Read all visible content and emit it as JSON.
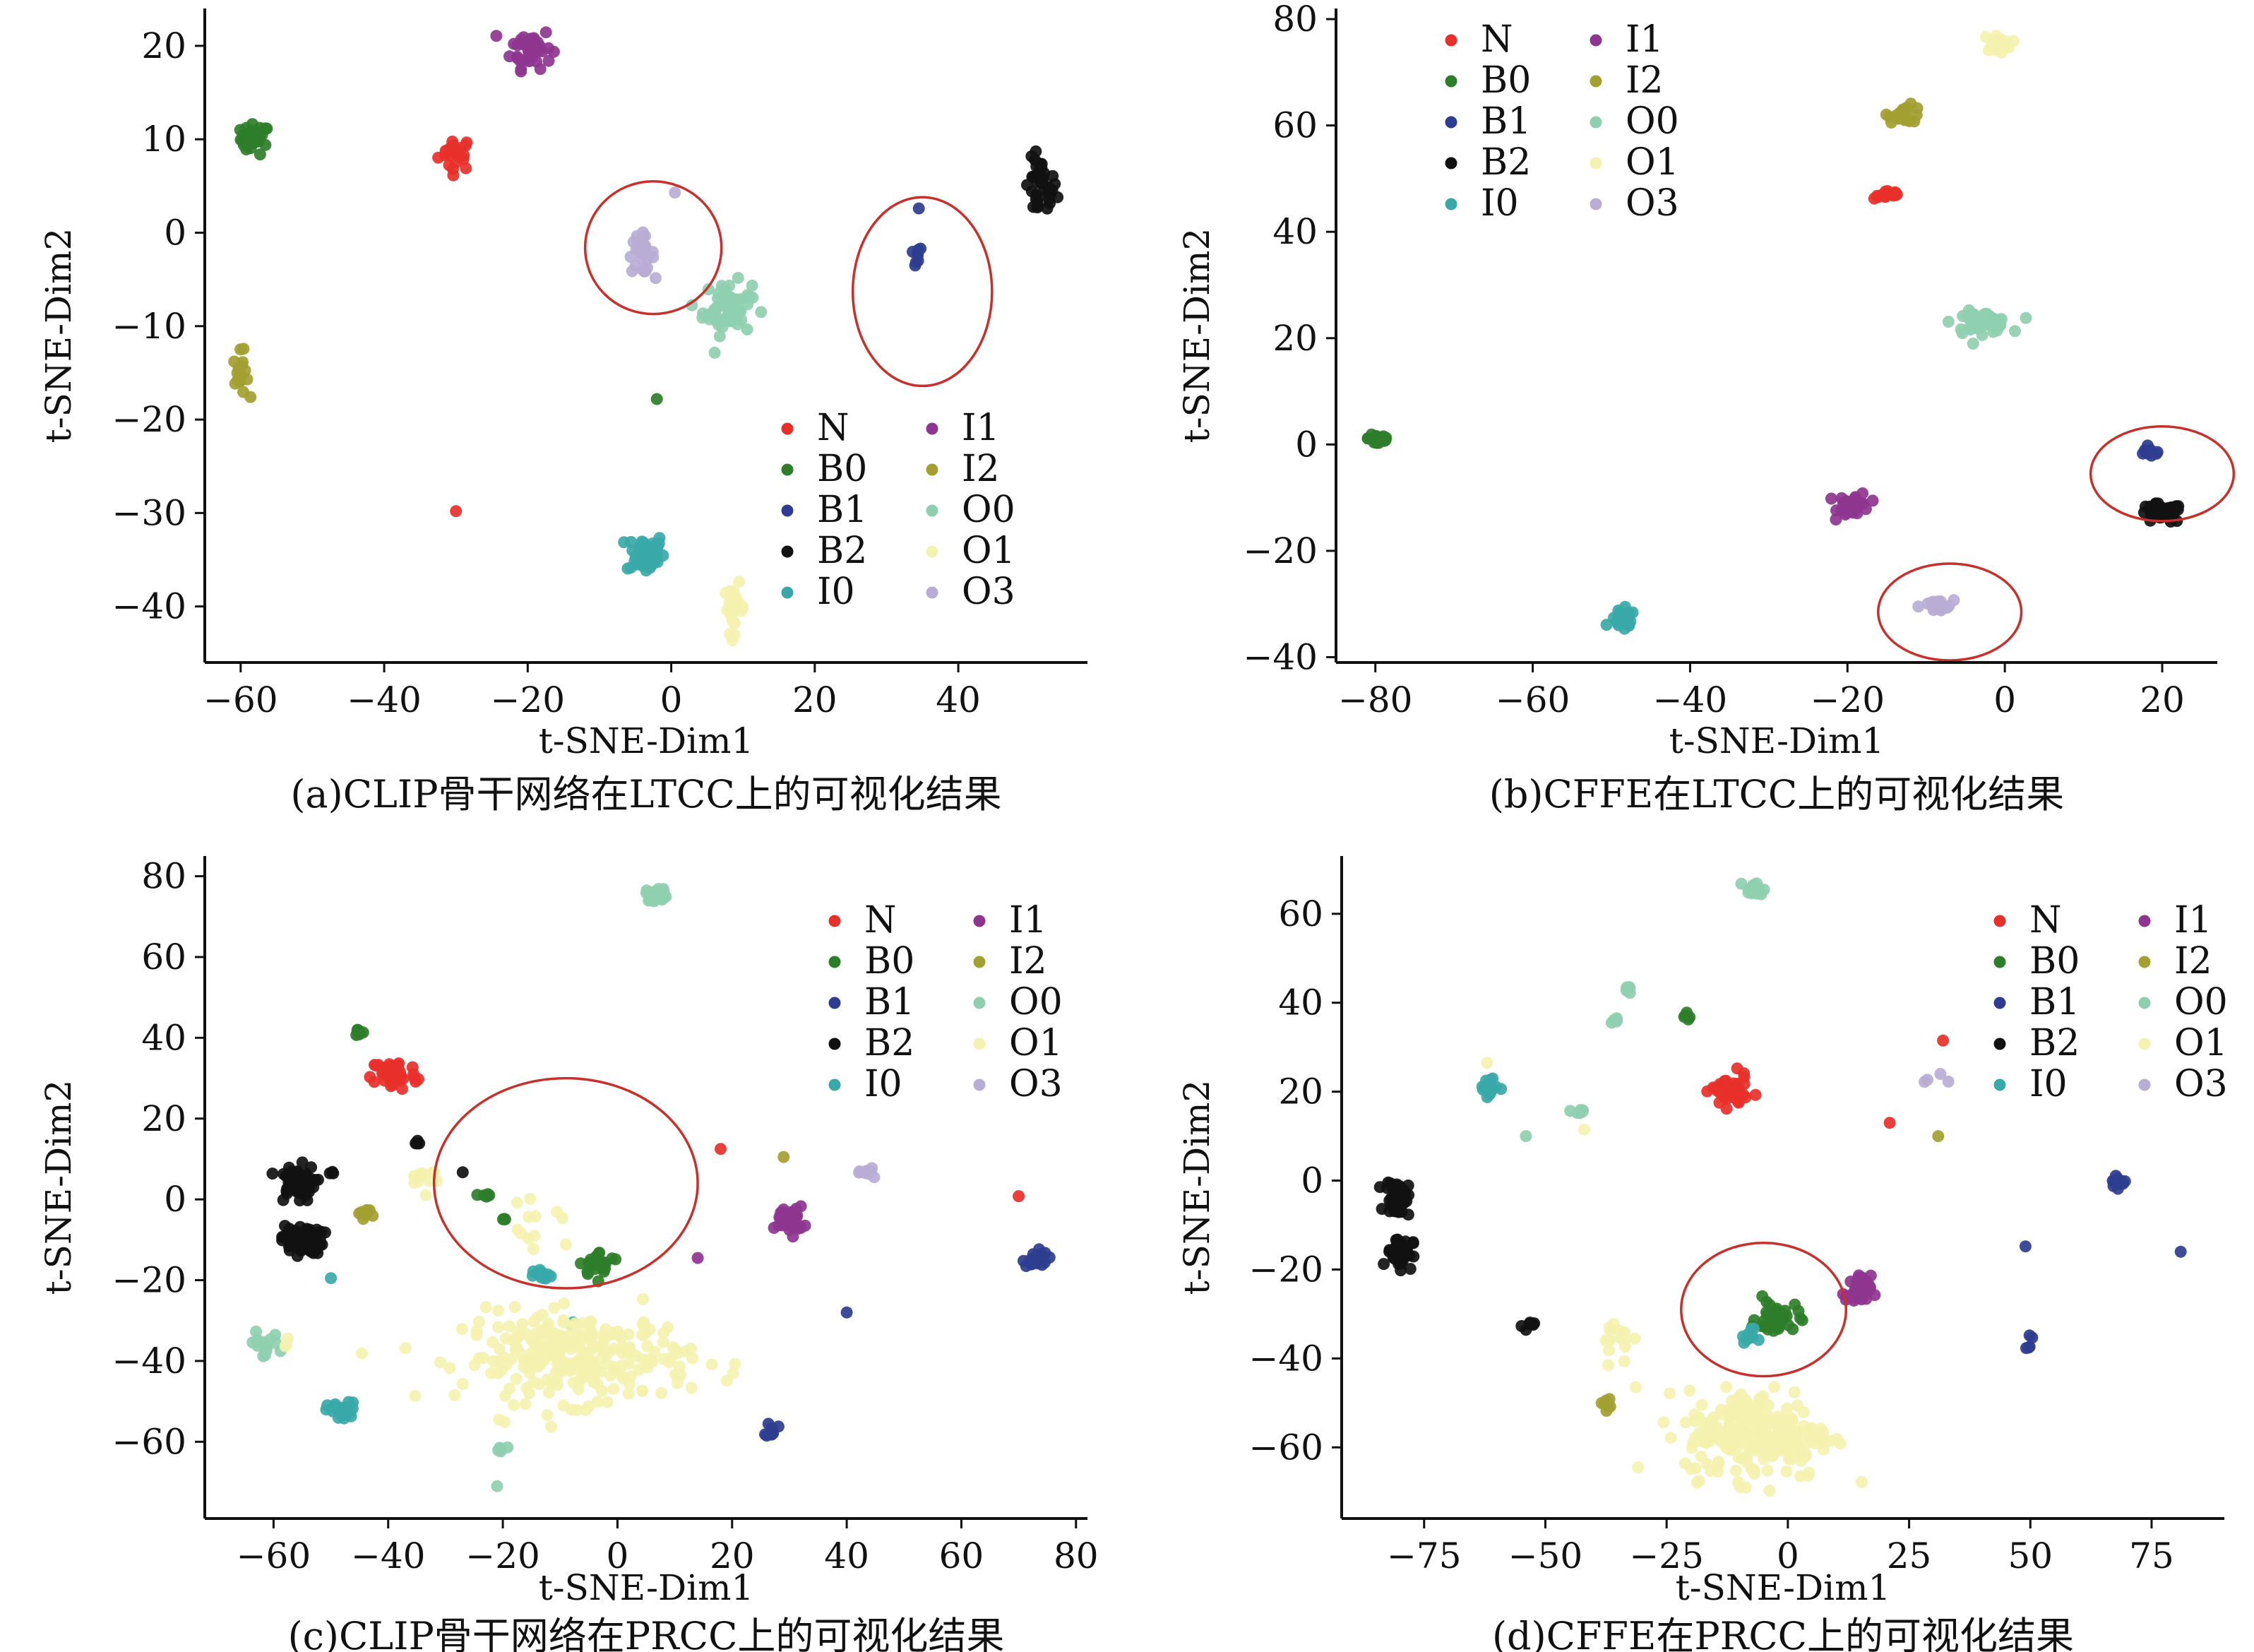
{
  "chart_data": [
    {
      "type": "scatter",
      "caption": "(a)CLIP骨干网络在LTCC上的可视化结果",
      "xlabel": "t-SNE-Dim1",
      "ylabel": "t-SNE-Dim2",
      "xlim": [
        -65,
        58
      ],
      "ylim": [
        -46,
        24
      ],
      "xticks": [
        -60,
        -40,
        -20,
        0,
        20,
        40
      ],
      "yticks": [
        20,
        10,
        0,
        -10,
        -20,
        -30,
        -40
      ],
      "legend_position": "bottom-right",
      "highlight_ellipses": [
        {
          "cx": -2.5,
          "cy": -1.6,
          "rx": 9.5,
          "ry": 7.1
        },
        {
          "cx": 35,
          "cy": -6.3,
          "rx": 9.7,
          "ry": 10.1
        }
      ],
      "series": [
        {
          "name": "N",
          "color": "#e8302a",
          "clusters": [
            {
              "x": -30,
              "y": 8.5,
              "sx": 1.2,
              "sy": 0.9,
              "n": 24
            },
            {
              "x": -30,
              "y": -29.8,
              "sx": 0.1,
              "sy": 0.1,
              "n": 1
            }
          ]
        },
        {
          "name": "B0",
          "color": "#2e7d2a",
          "clusters": [
            {
              "x": -58,
              "y": 10,
              "sx": 1.0,
              "sy": 0.8,
              "n": 30
            },
            {
              "x": -2,
              "y": -17.8,
              "sx": 0.1,
              "sy": 0.1,
              "n": 1
            }
          ]
        },
        {
          "name": "B1",
          "color": "#2e3d8f",
          "clusters": [
            {
              "x": 34,
              "y": -2.6,
              "sx": 0.5,
              "sy": 0.6,
              "n": 8
            },
            {
              "x": 34.5,
              "y": 2.6,
              "sx": 0.1,
              "sy": 0.1,
              "n": 1
            }
          ]
        },
        {
          "name": "B2",
          "color": "#111111",
          "clusters": [
            {
              "x": 51.5,
              "y": 4.7,
              "sx": 1.1,
              "sy": 1.6,
              "n": 40
            }
          ]
        },
        {
          "name": "I0",
          "color": "#3aa8a8",
          "clusters": [
            {
              "x": -3.6,
              "y": -34.3,
              "sx": 1.3,
              "sy": 1.1,
              "n": 45
            }
          ]
        },
        {
          "name": "I1",
          "color": "#8e3590",
          "clusters": [
            {
              "x": -19.5,
              "y": 19.8,
              "sx": 1.4,
              "sy": 1.1,
              "n": 45
            }
          ]
        },
        {
          "name": "I2",
          "color": "#a3a032",
          "clusters": [
            {
              "x": -60,
              "y": -15.2,
              "sx": 0.5,
              "sy": 1.2,
              "n": 18
            }
          ]
        },
        {
          "name": "O0",
          "color": "#8fcfb0",
          "clusters": [
            {
              "x": 7.8,
              "y": -8.1,
              "sx": 1.7,
              "sy": 1.4,
              "n": 60
            }
          ]
        },
        {
          "name": "O1",
          "color": "#f4f2b0",
          "clusters": [
            {
              "x": 8.8,
              "y": -40.2,
              "sx": 0.7,
              "sy": 1.3,
              "n": 25
            }
          ]
        },
        {
          "name": "O3",
          "color": "#b9acd5",
          "clusters": [
            {
              "x": -4.2,
              "y": -2.3,
              "sx": 0.9,
              "sy": 1.0,
              "n": 30
            },
            {
              "x": 0.5,
              "y": 4.3,
              "sx": 0.1,
              "sy": 0.1,
              "n": 1
            }
          ]
        }
      ]
    },
    {
      "type": "scatter",
      "caption": "(b)CFFE在LTCC上的可视化结果",
      "xlabel": "t-SNE-Dim1",
      "ylabel": "t-SNE-Dim2",
      "xlim": [
        -85,
        27
      ],
      "ylim": [
        -41,
        82
      ],
      "xticks": [
        -80,
        -60,
        -40,
        -20,
        0,
        20
      ],
      "yticks": [
        80,
        60,
        40,
        20,
        0,
        -20,
        -40
      ],
      "legend_position": "top-left",
      "highlight_ellipses": [
        {
          "cx": 20,
          "cy": -5.5,
          "rx": 9.1,
          "ry": 8.9
        },
        {
          "cx": -7,
          "cy": -31.5,
          "rx": 9.1,
          "ry": 9.1
        }
      ],
      "series": [
        {
          "name": "N",
          "color": "#e8302a",
          "clusters": [
            {
              "x": -14.8,
              "y": 47,
              "sx": 0.9,
              "sy": 0.4,
              "n": 20
            }
          ]
        },
        {
          "name": "B0",
          "color": "#2e7d2a",
          "clusters": [
            {
              "x": -79.5,
              "y": 1.2,
              "sx": 0.7,
              "sy": 0.8,
              "n": 20
            }
          ]
        },
        {
          "name": "B1",
          "color": "#2e3d8f",
          "clusters": [
            {
              "x": 18.5,
              "y": -1.5,
              "sx": 0.8,
              "sy": 0.4,
              "n": 12
            }
          ]
        },
        {
          "name": "B2",
          "color": "#111111",
          "clusters": [
            {
              "x": 19.8,
              "y": -13,
              "sx": 1.4,
              "sy": 0.9,
              "n": 40
            }
          ]
        },
        {
          "name": "I0",
          "color": "#3aa8a8",
          "clusters": [
            {
              "x": -48.5,
              "y": -33,
              "sx": 0.8,
              "sy": 1.0,
              "n": 25
            }
          ]
        },
        {
          "name": "I1",
          "color": "#8e3590",
          "clusters": [
            {
              "x": -19.2,
              "y": -11.3,
              "sx": 1.0,
              "sy": 1.1,
              "n": 35
            }
          ]
        },
        {
          "name": "I2",
          "color": "#a3a032",
          "clusters": [
            {
              "x": -12.6,
              "y": 62.2,
              "sx": 1.1,
              "sy": 0.8,
              "n": 22
            }
          ]
        },
        {
          "name": "O0",
          "color": "#8fcfb0",
          "clusters": [
            {
              "x": -3,
              "y": 23,
              "sx": 1.8,
              "sy": 1.0,
              "n": 50
            }
          ]
        },
        {
          "name": "O1",
          "color": "#f4f2b0",
          "clusters": [
            {
              "x": -1,
              "y": 75.5,
              "sx": 0.9,
              "sy": 0.8,
              "n": 22
            }
          ]
        },
        {
          "name": "O3",
          "color": "#b9acd5",
          "clusters": [
            {
              "x": -8.7,
              "y": -30.5,
              "sx": 1.1,
              "sy": 0.6,
              "n": 25
            }
          ]
        }
      ]
    },
    {
      "type": "scatter",
      "caption": "(c)CLIP骨干网络在PRCC上的可视化结果",
      "xlabel": "t-SNE-Dim1",
      "ylabel": "t-SNE-Dim2",
      "xlim": [
        -72,
        82
      ],
      "ylim": [
        -79,
        85
      ],
      "xticks": [
        -60,
        -40,
        -20,
        0,
        20,
        40,
        60,
        80
      ],
      "yticks": [
        80,
        60,
        40,
        20,
        0,
        -20,
        -40,
        -60
      ],
      "legend_position": "top-right",
      "highlight_ellipses": [
        {
          "cx": -9,
          "cy": 4,
          "rx": 23,
          "ry": 26
        }
      ],
      "series": [
        {
          "name": "N",
          "color": "#e8302a",
          "clusters": [
            {
              "x": -39,
              "y": 31,
              "sx": 2.0,
              "sy": 2.0,
              "n": 50
            },
            {
              "x": 18,
              "y": 12.5,
              "sx": 0.1,
              "sy": 0.1,
              "n": 1
            },
            {
              "x": 70,
              "y": 0.8,
              "sx": 0.1,
              "sy": 0.1,
              "n": 1
            }
          ]
        },
        {
          "name": "B0",
          "color": "#2e7d2a",
          "clusters": [
            {
              "x": -45,
              "y": 41.5,
              "sx": 0.4,
              "sy": 0.5,
              "n": 8
            },
            {
              "x": -3,
              "y": -16,
              "sx": 1.8,
              "sy": 1.5,
              "n": 25
            },
            {
              "x": -23,
              "y": 1,
              "sx": 0.5,
              "sy": 0.5,
              "n": 5
            },
            {
              "x": -20,
              "y": -5,
              "sx": 0.3,
              "sy": 0.3,
              "n": 3
            }
          ]
        },
        {
          "name": "B1",
          "color": "#2e3d8f",
          "clusters": [
            {
              "x": 73,
              "y": -14.5,
              "sx": 1.0,
              "sy": 1.2,
              "n": 20
            },
            {
              "x": 27,
              "y": -57,
              "sx": 0.5,
              "sy": 1.0,
              "n": 8
            },
            {
              "x": 40,
              "y": -28,
              "sx": 0.1,
              "sy": 0.1,
              "n": 1
            }
          ]
        },
        {
          "name": "B2",
          "color": "#111111",
          "clusters": [
            {
              "x": -56,
              "y": 4,
              "sx": 1.6,
              "sy": 2.2,
              "n": 60
            },
            {
              "x": -55,
              "y": -10,
              "sx": 1.8,
              "sy": 1.8,
              "n": 55
            },
            {
              "x": -50,
              "y": 6.5,
              "sx": 0.3,
              "sy": 0.3,
              "n": 3
            },
            {
              "x": -35,
              "y": 14,
              "sx": 0.5,
              "sy": 0.5,
              "n": 4
            },
            {
              "x": -27,
              "y": 6.7,
              "sx": 0.1,
              "sy": 0.1,
              "n": 1
            }
          ]
        },
        {
          "name": "I0",
          "color": "#3aa8a8",
          "clusters": [
            {
              "x": -48,
              "y": -52.5,
              "sx": 1.3,
              "sy": 1.1,
              "n": 30
            },
            {
              "x": -13,
              "y": -19,
              "sx": 0.8,
              "sy": 0.8,
              "n": 12
            },
            {
              "x": -50,
              "y": -19.5,
              "sx": 0.1,
              "sy": 0.1,
              "n": 1
            },
            {
              "x": -8,
              "y": -31,
              "sx": 0.3,
              "sy": 0.3,
              "n": 2
            }
          ]
        },
        {
          "name": "I1",
          "color": "#8e3590",
          "clusters": [
            {
              "x": 30,
              "y": -5,
              "sx": 1.2,
              "sy": 1.6,
              "n": 45
            },
            {
              "x": 14,
              "y": -14.5,
              "sx": 0.1,
              "sy": 0.1,
              "n": 1
            }
          ]
        },
        {
          "name": "I2",
          "color": "#a3a032",
          "clusters": [
            {
              "x": -44,
              "y": -3.5,
              "sx": 0.6,
              "sy": 0.6,
              "n": 10
            },
            {
              "x": 29,
              "y": 10.5,
              "sx": 0.1,
              "sy": 0.1,
              "n": 1
            }
          ]
        },
        {
          "name": "O0",
          "color": "#8fcfb0",
          "clusters": [
            {
              "x": 7,
              "y": 75.5,
              "sx": 1.0,
              "sy": 0.8,
              "n": 22
            },
            {
              "x": -62,
              "y": -36,
              "sx": 1.5,
              "sy": 1.5,
              "n": 15
            },
            {
              "x": -20.5,
              "y": -62,
              "sx": 0.5,
              "sy": 0.5,
              "n": 6
            },
            {
              "x": -21,
              "y": -71,
              "sx": 0.1,
              "sy": 0.1,
              "n": 1
            }
          ]
        },
        {
          "name": "O1",
          "color": "#f4f2b0",
          "clusters": [
            {
              "x": -7,
              "y": -39,
              "sx": 10,
              "sy": 5.5,
              "n": 260
            },
            {
              "x": -34,
              "y": 6,
              "sx": 1.5,
              "sy": 2.0,
              "n": 12
            },
            {
              "x": -14,
              "y": -8,
              "sx": 3.0,
              "sy": 3.0,
              "n": 12
            },
            {
              "x": -58,
              "y": -36,
              "sx": 1.0,
              "sy": 1.0,
              "n": 3
            }
          ]
        },
        {
          "name": "O3",
          "color": "#b9acd5",
          "clusters": [
            {
              "x": 44,
              "y": 7,
              "sx": 0.7,
              "sy": 0.6,
              "n": 10
            }
          ]
        }
      ]
    },
    {
      "type": "scatter",
      "caption": "(d)CFFE在PRCC上的可视化结果",
      "xlabel": "t-SNE-Dim1",
      "ylabel": "t-SNE-Dim2",
      "xlim": [
        -92,
        90
      ],
      "ylim": [
        -76,
        73
      ],
      "xticks": [
        -75,
        -50,
        -25,
        0,
        25,
        50,
        75
      ],
      "yticks": [
        60,
        40,
        20,
        0,
        -20,
        -40,
        -60
      ],
      "legend_position": "top-right",
      "highlight_ellipses": [
        {
          "cx": -5,
          "cy": -29,
          "rx": 17,
          "ry": 15
        }
      ],
      "series": [
        {
          "name": "N",
          "color": "#e8302a",
          "clusters": [
            {
              "x": -12,
              "y": 20,
              "sx": 1.8,
              "sy": 1.8,
              "n": 55
            },
            {
              "x": 32,
              "y": 31.5,
              "sx": 0.1,
              "sy": 0.1,
              "n": 1
            },
            {
              "x": 21,
              "y": 13,
              "sx": 0.1,
              "sy": 0.1,
              "n": 1
            }
          ]
        },
        {
          "name": "B0",
          "color": "#2e7d2a",
          "clusters": [
            {
              "x": -21,
              "y": 36.5,
              "sx": 0.5,
              "sy": 0.5,
              "n": 8
            },
            {
              "x": -2,
              "y": -31,
              "sx": 2.2,
              "sy": 2.0,
              "n": 35
            }
          ]
        },
        {
          "name": "B1",
          "color": "#2e3d8f",
          "clusters": [
            {
              "x": 68,
              "y": -0.5,
              "sx": 0.8,
              "sy": 0.6,
              "n": 14
            },
            {
              "x": 49.5,
              "y": -36,
              "sx": 0.4,
              "sy": 0.8,
              "n": 5
            },
            {
              "x": 49,
              "y": -14.8,
              "sx": 0.1,
              "sy": 0.1,
              "n": 1
            },
            {
              "x": 81,
              "y": -16,
              "sx": 0.1,
              "sy": 0.1,
              "n": 1
            }
          ]
        },
        {
          "name": "B2",
          "color": "#111111",
          "clusters": [
            {
              "x": -80.5,
              "y": -4,
              "sx": 1.2,
              "sy": 2.0,
              "n": 50
            },
            {
              "x": -80,
              "y": -16,
              "sx": 1.3,
              "sy": 1.8,
              "n": 50
            },
            {
              "x": -53.5,
              "y": -32.7,
              "sx": 0.6,
              "sy": 0.5,
              "n": 6
            }
          ]
        },
        {
          "name": "I0",
          "color": "#3aa8a8",
          "clusters": [
            {
              "x": -62,
              "y": 21,
              "sx": 1.0,
              "sy": 1.5,
              "n": 18
            },
            {
              "x": -8,
              "y": -35,
              "sx": 0.7,
              "sy": 0.8,
              "n": 10
            }
          ]
        },
        {
          "name": "I1",
          "color": "#8e3590",
          "clusters": [
            {
              "x": 14.5,
              "y": -25,
              "sx": 1.3,
              "sy": 1.8,
              "n": 35
            }
          ]
        },
        {
          "name": "I2",
          "color": "#a3a032",
          "clusters": [
            {
              "x": -37.5,
              "y": -50.5,
              "sx": 0.5,
              "sy": 1.0,
              "n": 8
            },
            {
              "x": 31,
              "y": 10,
              "sx": 0.1,
              "sy": 0.1,
              "n": 1
            }
          ]
        },
        {
          "name": "O0",
          "color": "#8fcfb0",
          "clusters": [
            {
              "x": -7,
              "y": 65.5,
              "sx": 1.0,
              "sy": 0.8,
              "n": 20
            },
            {
              "x": -33,
              "y": 42.5,
              "sx": 0.5,
              "sy": 0.6,
              "n": 6
            },
            {
              "x": -35.5,
              "y": 36.5,
              "sx": 0.5,
              "sy": 0.7,
              "n": 6
            },
            {
              "x": -43,
              "y": 15.5,
              "sx": 1.0,
              "sy": 0.5,
              "n": 6
            },
            {
              "x": -54,
              "y": 10,
              "sx": 0.1,
              "sy": 0.1,
              "n": 1
            }
          ]
        },
        {
          "name": "O1",
          "color": "#f4f2b0",
          "clusters": [
            {
              "x": -6,
              "y": -57,
              "sx": 7.5,
              "sy": 5,
              "n": 230
            },
            {
              "x": -35,
              "y": -35,
              "sx": 2.0,
              "sy": 3.0,
              "n": 15
            },
            {
              "x": -62,
              "y": 26.5,
              "sx": 0.2,
              "sy": 0.2,
              "n": 1
            },
            {
              "x": -42,
              "y": 11.5,
              "sx": 0.1,
              "sy": 0.1,
              "n": 1
            }
          ]
        },
        {
          "name": "O3",
          "color": "#b9acd5",
          "clusters": [
            {
              "x": 29,
              "y": 23.5,
              "sx": 1.5,
              "sy": 1.5,
              "n": 4
            }
          ]
        }
      ]
    }
  ]
}
